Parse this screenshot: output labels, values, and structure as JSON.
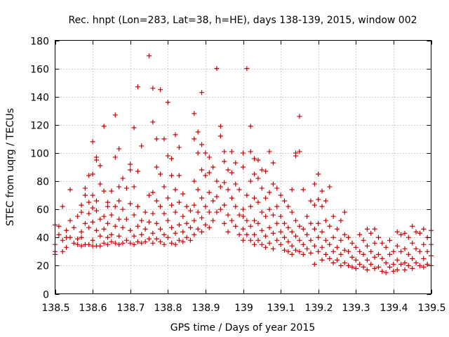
{
  "chart_data": {
    "type": "scatter",
    "title": "Rec. hnpt (Lon=283, Lat=38, h=HE), days 138-139, 2015, window 002",
    "xlabel": "GPS time / Days of year 2015",
    "ylabel": "STEC from uqrg / TECUs",
    "xlim": [
      138.5,
      139.5
    ],
    "ylim": [
      0,
      180
    ],
    "xticks": [
      138.5,
      138.6,
      138.7,
      138.8,
      138.9,
      139.0,
      139.1,
      139.2,
      139.3,
      139.4,
      139.5
    ],
    "xtick_labels": [
      "138.5",
      "138.6",
      "138.7",
      "138.8",
      "138.9",
      "139",
      "139.1",
      "139.2",
      "139.3",
      "139.4",
      "139.5"
    ],
    "yticks": [
      0,
      20,
      40,
      60,
      80,
      100,
      120,
      140,
      160,
      180
    ],
    "ytick_labels": [
      "0",
      "20",
      "40",
      "60",
      "80",
      "100",
      "120",
      "140",
      "160",
      "180"
    ],
    "grid": true,
    "marker": "+",
    "color": "#cc0000",
    "points": [
      [
        138.5,
        49
      ],
      [
        138.5,
        35
      ],
      [
        138.5,
        30
      ],
      [
        138.5,
        28
      ],
      [
        138.51,
        42
      ],
      [
        138.51,
        48
      ],
      [
        138.52,
        62
      ],
      [
        138.52,
        38
      ],
      [
        138.52,
        30
      ],
      [
        138.53,
        45
      ],
      [
        138.53,
        40
      ],
      [
        138.53,
        33
      ],
      [
        138.54,
        74
      ],
      [
        138.54,
        52
      ],
      [
        138.54,
        40
      ],
      [
        138.55,
        47
      ],
      [
        138.55,
        36
      ],
      [
        138.56,
        55
      ],
      [
        138.56,
        39
      ],
      [
        138.56,
        35
      ],
      [
        138.57,
        63
      ],
      [
        138.57,
        58
      ],
      [
        138.57,
        44
      ],
      [
        138.57,
        40
      ],
      [
        138.57,
        34
      ],
      [
        138.58,
        70
      ],
      [
        138.58,
        75
      ],
      [
        138.58,
        50
      ],
      [
        138.58,
        35
      ],
      [
        138.59,
        84
      ],
      [
        138.59,
        65
      ],
      [
        138.59,
        57
      ],
      [
        138.59,
        47
      ],
      [
        138.59,
        35
      ],
      [
        138.6,
        108
      ],
      [
        138.6,
        85
      ],
      [
        138.6,
        70
      ],
      [
        138.6,
        61
      ],
      [
        138.6,
        51
      ],
      [
        138.6,
        38
      ],
      [
        138.6,
        34
      ],
      [
        138.61,
        97
      ],
      [
        138.61,
        95
      ],
      [
        138.61,
        66
      ],
      [
        138.61,
        59
      ],
      [
        138.61,
        45
      ],
      [
        138.61,
        34
      ],
      [
        138.62,
        91
      ],
      [
        138.62,
        78
      ],
      [
        138.62,
        53
      ],
      [
        138.62,
        41
      ],
      [
        138.62,
        34
      ],
      [
        138.63,
        119
      ],
      [
        138.63,
        73
      ],
      [
        138.63,
        55
      ],
      [
        138.63,
        46
      ],
      [
        138.63,
        36
      ],
      [
        138.64,
        65
      ],
      [
        138.64,
        62
      ],
      [
        138.64,
        50
      ],
      [
        138.64,
        40
      ],
      [
        138.64,
        35
      ],
      [
        138.65,
        73
      ],
      [
        138.65,
        56
      ],
      [
        138.65,
        42
      ],
      [
        138.65,
        37
      ],
      [
        138.66,
        127
      ],
      [
        138.66,
        97
      ],
      [
        138.66,
        62
      ],
      [
        138.66,
        48
      ],
      [
        138.66,
        36
      ],
      [
        138.67,
        103
      ],
      [
        138.67,
        76
      ],
      [
        138.67,
        66
      ],
      [
        138.67,
        53
      ],
      [
        138.67,
        41
      ],
      [
        138.67,
        35
      ],
      [
        138.68,
        82
      ],
      [
        138.68,
        60
      ],
      [
        138.68,
        47
      ],
      [
        138.68,
        36
      ],
      [
        138.69,
        75
      ],
      [
        138.69,
        53
      ],
      [
        138.69,
        38
      ],
      [
        138.7,
        92
      ],
      [
        138.7,
        88
      ],
      [
        138.7,
        64
      ],
      [
        138.7,
        45
      ],
      [
        138.7,
        36
      ],
      [
        138.71,
        118
      ],
      [
        138.71,
        76
      ],
      [
        138.71,
        56
      ],
      [
        138.71,
        41
      ],
      [
        138.71,
        35
      ],
      [
        138.72,
        147
      ],
      [
        138.72,
        87
      ],
      [
        138.72,
        62
      ],
      [
        138.72,
        48
      ],
      [
        138.72,
        37
      ],
      [
        138.73,
        105
      ],
      [
        138.73,
        52
      ],
      [
        138.73,
        42
      ],
      [
        138.73,
        36
      ],
      [
        138.74,
        58
      ],
      [
        138.74,
        46
      ],
      [
        138.74,
        37
      ],
      [
        138.75,
        169
      ],
      [
        138.75,
        70
      ],
      [
        138.75,
        51
      ],
      [
        138.75,
        39
      ],
      [
        138.76,
        146
      ],
      [
        138.76,
        122
      ],
      [
        138.76,
        72
      ],
      [
        138.76,
        57
      ],
      [
        138.76,
        43
      ],
      [
        138.76,
        36
      ],
      [
        138.77,
        110
      ],
      [
        138.77,
        90
      ],
      [
        138.77,
        66
      ],
      [
        138.77,
        50
      ],
      [
        138.77,
        39
      ],
      [
        138.78,
        145
      ],
      [
        138.78,
        85
      ],
      [
        138.78,
        62
      ],
      [
        138.78,
        46
      ],
      [
        138.78,
        37
      ],
      [
        138.79,
        110
      ],
      [
        138.79,
        76
      ],
      [
        138.79,
        57
      ],
      [
        138.79,
        42
      ],
      [
        138.79,
        35
      ],
      [
        138.8,
        136
      ],
      [
        138.8,
        98
      ],
      [
        138.8,
        68
      ],
      [
        138.8,
        52
      ],
      [
        138.8,
        40
      ],
      [
        138.81,
        96
      ],
      [
        138.81,
        84
      ],
      [
        138.81,
        63
      ],
      [
        138.81,
        47
      ],
      [
        138.81,
        36
      ],
      [
        138.82,
        113
      ],
      [
        138.82,
        74
      ],
      [
        138.82,
        58
      ],
      [
        138.82,
        43
      ],
      [
        138.82,
        35
      ],
      [
        138.83,
        104
      ],
      [
        138.83,
        84
      ],
      [
        138.83,
        65
      ],
      [
        138.83,
        49
      ],
      [
        138.83,
        38
      ],
      [
        138.84,
        71
      ],
      [
        138.84,
        55
      ],
      [
        138.84,
        44
      ],
      [
        138.84,
        37
      ],
      [
        138.85,
        62
      ],
      [
        138.85,
        50
      ],
      [
        138.85,
        40
      ],
      [
        138.86,
        59
      ],
      [
        138.86,
        47
      ],
      [
        138.86,
        38
      ],
      [
        138.87,
        128
      ],
      [
        138.87,
        110
      ],
      [
        138.87,
        80
      ],
      [
        138.87,
        63
      ],
      [
        138.87,
        52
      ],
      [
        138.87,
        42
      ],
      [
        138.88,
        115
      ],
      [
        138.88,
        100
      ],
      [
        138.88,
        74
      ],
      [
        138.88,
        58
      ],
      [
        138.88,
        46
      ],
      [
        138.89,
        143
      ],
      [
        138.89,
        106
      ],
      [
        138.89,
        88
      ],
      [
        138.89,
        68
      ],
      [
        138.89,
        54
      ],
      [
        138.89,
        44
      ],
      [
        138.9,
        100
      ],
      [
        138.9,
        84
      ],
      [
        138.9,
        62
      ],
      [
        138.9,
        49
      ],
      [
        138.91,
        97
      ],
      [
        138.91,
        86
      ],
      [
        138.91,
        72
      ],
      [
        138.91,
        58
      ],
      [
        138.91,
        47
      ],
      [
        138.92,
        90
      ],
      [
        138.92,
        66
      ],
      [
        138.92,
        52
      ],
      [
        138.93,
        160
      ],
      [
        138.93,
        80
      ],
      [
        138.93,
        69
      ],
      [
        138.93,
        58
      ],
      [
        138.94,
        119
      ],
      [
        138.94,
        112
      ],
      [
        138.94,
        76
      ],
      [
        138.94,
        60
      ],
      [
        138.95,
        101
      ],
      [
        138.95,
        94
      ],
      [
        138.95,
        79
      ],
      [
        138.95,
        63
      ],
      [
        138.95,
        50
      ],
      [
        138.96,
        88
      ],
      [
        138.96,
        74
      ],
      [
        138.96,
        56
      ],
      [
        138.96,
        44
      ],
      [
        138.97,
        101
      ],
      [
        138.97,
        86
      ],
      [
        138.97,
        68
      ],
      [
        138.97,
        52
      ],
      [
        138.98,
        93
      ],
      [
        138.98,
        78
      ],
      [
        138.98,
        62
      ],
      [
        138.98,
        48
      ],
      [
        138.99,
        74
      ],
      [
        138.99,
        56
      ],
      [
        138.99,
        42
      ],
      [
        139.0,
        100
      ],
      [
        139.0,
        90
      ],
      [
        139.0,
        60
      ],
      [
        139.0,
        55
      ],
      [
        139.0,
        46
      ],
      [
        139.0,
        38
      ],
      [
        139.01,
        160
      ],
      [
        139.01,
        70
      ],
      [
        139.01,
        52
      ],
      [
        139.01,
        42
      ],
      [
        139.02,
        119
      ],
      [
        139.02,
        101
      ],
      [
        139.02,
        80
      ],
      [
        139.02,
        62
      ],
      [
        139.02,
        48
      ],
      [
        139.02,
        38
      ],
      [
        139.03,
        96
      ],
      [
        139.03,
        85
      ],
      [
        139.03,
        68
      ],
      [
        139.03,
        52
      ],
      [
        139.03,
        42
      ],
      [
        139.03,
        35
      ],
      [
        139.04,
        95
      ],
      [
        139.04,
        82
      ],
      [
        139.04,
        65
      ],
      [
        139.04,
        50
      ],
      [
        139.04,
        38
      ],
      [
        139.05,
        88
      ],
      [
        139.05,
        75
      ],
      [
        139.05,
        58
      ],
      [
        139.05,
        45
      ],
      [
        139.05,
        35
      ],
      [
        139.06,
        87
      ],
      [
        139.06,
        68
      ],
      [
        139.06,
        55
      ],
      [
        139.06,
        41
      ],
      [
        139.06,
        33
      ],
      [
        139.07,
        101
      ],
      [
        139.07,
        72
      ],
      [
        139.07,
        60
      ],
      [
        139.07,
        47
      ],
      [
        139.07,
        36
      ],
      [
        139.08,
        93
      ],
      [
        139.08,
        78
      ],
      [
        139.08,
        56
      ],
      [
        139.08,
        43
      ],
      [
        139.08,
        32
      ],
      [
        139.09,
        75
      ],
      [
        139.09,
        62
      ],
      [
        139.09,
        50
      ],
      [
        139.09,
        38
      ],
      [
        139.1,
        70
      ],
      [
        139.1,
        55
      ],
      [
        139.1,
        44
      ],
      [
        139.1,
        35
      ],
      [
        139.11,
        66
      ],
      [
        139.11,
        50
      ],
      [
        139.11,
        40
      ],
      [
        139.11,
        31
      ],
      [
        139.12,
        62
      ],
      [
        139.12,
        47
      ],
      [
        139.12,
        37
      ],
      [
        139.12,
        30
      ],
      [
        139.13,
        74
      ],
      [
        139.13,
        58
      ],
      [
        139.13,
        44
      ],
      [
        139.13,
        34
      ],
      [
        139.13,
        28
      ],
      [
        139.14,
        98
      ],
      [
        139.14,
        100
      ],
      [
        139.14,
        52
      ],
      [
        139.14,
        41
      ],
      [
        139.14,
        31
      ],
      [
        139.15,
        126
      ],
      [
        139.15,
        101
      ],
      [
        139.15,
        48
      ],
      [
        139.15,
        38
      ],
      [
        139.15,
        30
      ],
      [
        139.16,
        74
      ],
      [
        139.16,
        46
      ],
      [
        139.16,
        35
      ],
      [
        139.16,
        28
      ],
      [
        139.17,
        55
      ],
      [
        139.17,
        42
      ],
      [
        139.17,
        32
      ],
      [
        139.18,
        66
      ],
      [
        139.18,
        50
      ],
      [
        139.18,
        38
      ],
      [
        139.18,
        29
      ],
      [
        139.19,
        78
      ],
      [
        139.19,
        63
      ],
      [
        139.19,
        46
      ],
      [
        139.19,
        34
      ],
      [
        139.19,
        21
      ],
      [
        139.2,
        85
      ],
      [
        139.2,
        67
      ],
      [
        139.2,
        50
      ],
      [
        139.2,
        40
      ],
      [
        139.2,
        30
      ],
      [
        139.21,
        73
      ],
      [
        139.21,
        62
      ],
      [
        139.21,
        44
      ],
      [
        139.21,
        33
      ],
      [
        139.21,
        24
      ],
      [
        139.22,
        66
      ],
      [
        139.22,
        52
      ],
      [
        139.22,
        38
      ],
      [
        139.22,
        28
      ],
      [
        139.23,
        76
      ],
      [
        139.23,
        48
      ],
      [
        139.23,
        35
      ],
      [
        139.23,
        25
      ],
      [
        139.24,
        55
      ],
      [
        139.24,
        40
      ],
      [
        139.24,
        30
      ],
      [
        139.24,
        22
      ],
      [
        139.25,
        46
      ],
      [
        139.25,
        33
      ],
      [
        139.25,
        24
      ],
      [
        139.26,
        52
      ],
      [
        139.26,
        38
      ],
      [
        139.26,
        28
      ],
      [
        139.26,
        20
      ],
      [
        139.27,
        58
      ],
      [
        139.27,
        42
      ],
      [
        139.27,
        31
      ],
      [
        139.27,
        22
      ],
      [
        139.28,
        40
      ],
      [
        139.28,
        30
      ],
      [
        139.28,
        20
      ],
      [
        139.29,
        36
      ],
      [
        139.29,
        26
      ],
      [
        139.29,
        19
      ],
      [
        139.3,
        33
      ],
      [
        139.3,
        24
      ],
      [
        139.3,
        18
      ],
      [
        139.31,
        42
      ],
      [
        139.31,
        30
      ],
      [
        139.31,
        21
      ],
      [
        139.32,
        38
      ],
      [
        139.32,
        28
      ],
      [
        139.32,
        19
      ],
      [
        139.33,
        46
      ],
      [
        139.33,
        34
      ],
      [
        139.33,
        24
      ],
      [
        139.33,
        17
      ],
      [
        139.34,
        43
      ],
      [
        139.34,
        30
      ],
      [
        139.34,
        21
      ],
      [
        139.35,
        46
      ],
      [
        139.35,
        36
      ],
      [
        139.35,
        26
      ],
      [
        139.35,
        18
      ],
      [
        139.36,
        40
      ],
      [
        139.36,
        28
      ],
      [
        139.36,
        19
      ],
      [
        139.37,
        36
      ],
      [
        139.37,
        25
      ],
      [
        139.37,
        16
      ],
      [
        139.38,
        33
      ],
      [
        139.38,
        22
      ],
      [
        139.38,
        15
      ],
      [
        139.39,
        38
      ],
      [
        139.39,
        28
      ],
      [
        139.39,
        19
      ],
      [
        139.4,
        30
      ],
      [
        139.4,
        21
      ],
      [
        139.4,
        16
      ],
      [
        139.41,
        44
      ],
      [
        139.41,
        34
      ],
      [
        139.41,
        24
      ],
      [
        139.41,
        17
      ],
      [
        139.42,
        42
      ],
      [
        139.42,
        30
      ],
      [
        139.42,
        21
      ],
      [
        139.43,
        43
      ],
      [
        139.43,
        32
      ],
      [
        139.43,
        22
      ],
      [
        139.43,
        17
      ],
      [
        139.44,
        40
      ],
      [
        139.44,
        28
      ],
      [
        139.44,
        20
      ],
      [
        139.45,
        48
      ],
      [
        139.45,
        36
      ],
      [
        139.45,
        25
      ],
      [
        139.45,
        18
      ],
      [
        139.46,
        44
      ],
      [
        139.46,
        32
      ],
      [
        139.46,
        22
      ],
      [
        139.47,
        43
      ],
      [
        139.47,
        30
      ],
      [
        139.47,
        20
      ],
      [
        139.48,
        46
      ],
      [
        139.48,
        35
      ],
      [
        139.48,
        25
      ],
      [
        139.48,
        19
      ],
      [
        139.49,
        40
      ],
      [
        139.49,
        30
      ],
      [
        139.49,
        21
      ],
      [
        139.5,
        45
      ],
      [
        139.5,
        35
      ],
      [
        139.5,
        27
      ],
      [
        139.5,
        20
      ]
    ]
  }
}
